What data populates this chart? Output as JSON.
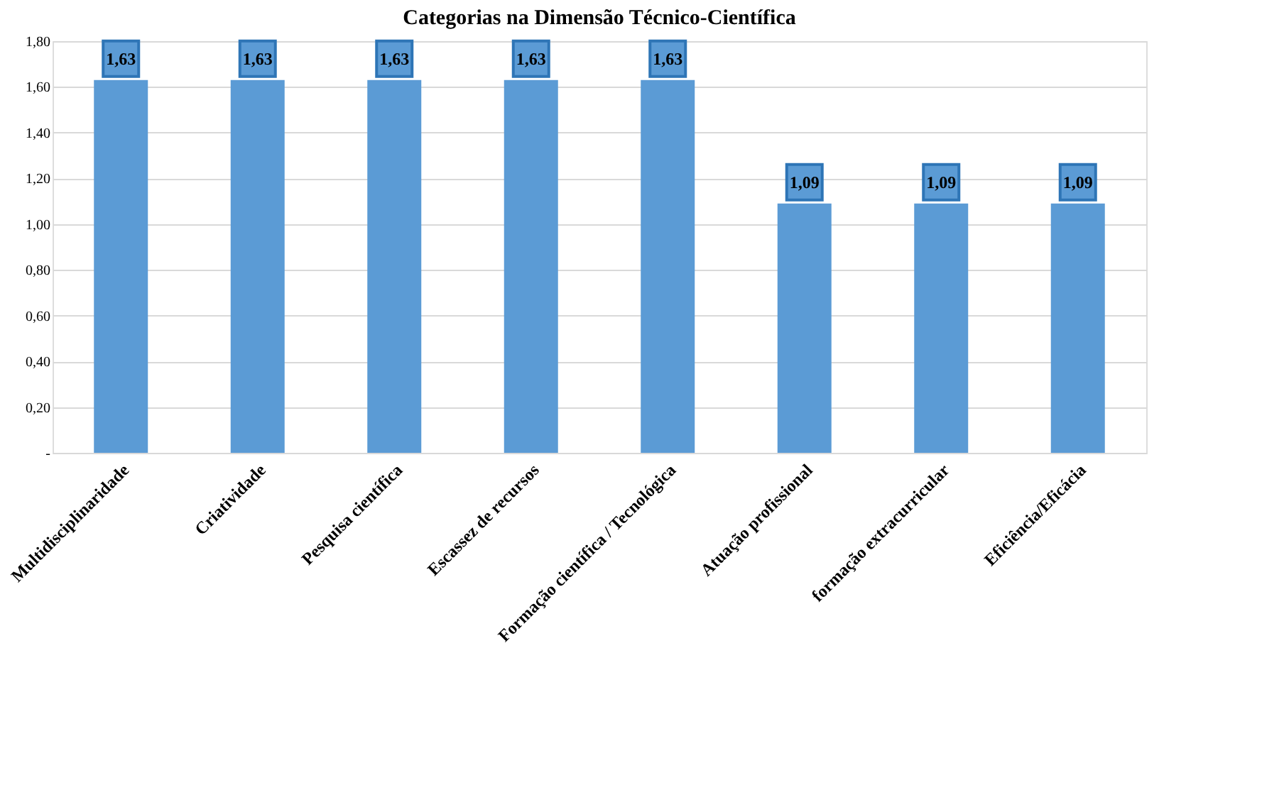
{
  "chart_data": {
    "type": "bar",
    "title": "Categorias na Dimensão Técnico-Científica",
    "categories": [
      "Multidisciplinaridade",
      "Criatividade",
      "Pesquisa científica",
      "Escassez de recursos",
      "Formação científica / Tecnológica",
      "Atuação profissional",
      "formação extracurricular",
      "Eficiência/Eficácia"
    ],
    "values": [
      1.63,
      1.63,
      1.63,
      1.63,
      1.63,
      1.09,
      1.09,
      1.09
    ],
    "value_labels": [
      "1,63",
      "1,63",
      "1,63",
      "1,63",
      "1,63",
      "1,09",
      "1,09",
      "1,09"
    ],
    "color": "#5b9bd5",
    "ylim": [
      0,
      1.8
    ],
    "yticks": [
      {
        "value": 0,
        "label": "-"
      },
      {
        "value": 0.2,
        "label": "0,20"
      },
      {
        "value": 0.4,
        "label": "0,40"
      },
      {
        "value": 0.6,
        "label": "0,60"
      },
      {
        "value": 0.8,
        "label": "0,80"
      },
      {
        "value": 1.0,
        "label": "1,00"
      },
      {
        "value": 1.2,
        "label": "1,20"
      },
      {
        "value": 1.4,
        "label": "1,40"
      },
      {
        "value": 1.6,
        "label": "1,60"
      },
      {
        "value": 1.8,
        "label": "1,80"
      }
    ],
    "grid": "y"
  }
}
